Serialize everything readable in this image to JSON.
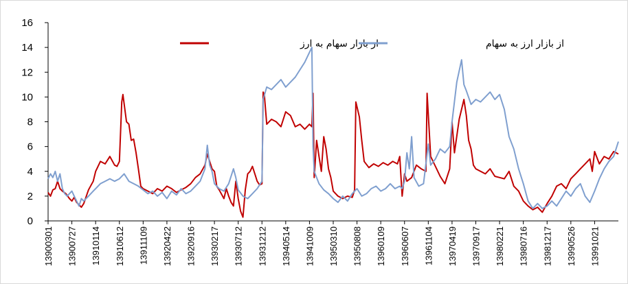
{
  "chart_data": {
    "type": "line",
    "title": "",
    "xlabel": "",
    "ylabel": "",
    "ylim": [
      0,
      16
    ],
    "y_ticks": [
      "0",
      "2",
      "4",
      "6",
      "8",
      "10",
      "12",
      "14",
      "16"
    ],
    "x_tick_labels": [
      "13900301",
      "13900727",
      "13910114",
      "13910612",
      "13911109",
      "13920422",
      "13920916",
      "13930217",
      "13930712",
      "13931212",
      "13940514",
      "13941009",
      "13950310",
      "13950808",
      "13960109",
      "13960607",
      "13961104",
      "13970419",
      "13970917",
      "13980221",
      "13980716",
      "13981217",
      "13990526",
      "13991021"
    ],
    "grid": false,
    "legend_position": "top",
    "series": [
      {
        "name": "از بازار سهام به ارز",
        "color": "#c00000",
        "points": [
          [
            0,
            2.3
          ],
          [
            0.1,
            2.0
          ],
          [
            0.2,
            2.5
          ],
          [
            0.3,
            2.6
          ],
          [
            0.4,
            3.2
          ],
          [
            0.5,
            2.6
          ],
          [
            0.6,
            2.4
          ],
          [
            0.75,
            2.2
          ],
          [
            0.9,
            1.8
          ],
          [
            1.0,
            1.6
          ],
          [
            1.1,
            1.9
          ],
          [
            1.2,
            1.5
          ],
          [
            1.3,
            1.3
          ],
          [
            1.4,
            1.1
          ],
          [
            1.5,
            1.4
          ],
          [
            1.7,
            2.5
          ],
          [
            1.9,
            3.2
          ],
          [
            2.0,
            4.0
          ],
          [
            2.2,
            4.8
          ],
          [
            2.4,
            4.6
          ],
          [
            2.6,
            5.2
          ],
          [
            2.8,
            4.5
          ],
          [
            2.9,
            4.4
          ],
          [
            3.0,
            4.8
          ],
          [
            3.1,
            9.6
          ],
          [
            3.15,
            10.2
          ],
          [
            3.3,
            8.0
          ],
          [
            3.4,
            7.8
          ],
          [
            3.5,
            6.5
          ],
          [
            3.6,
            6.6
          ],
          [
            3.7,
            5.5
          ],
          [
            3.8,
            4.2
          ],
          [
            3.9,
            2.8
          ],
          [
            4.0,
            2.6
          ],
          [
            4.2,
            2.4
          ],
          [
            4.4,
            2.2
          ],
          [
            4.6,
            2.6
          ],
          [
            4.8,
            2.4
          ],
          [
            5.0,
            2.8
          ],
          [
            5.2,
            2.6
          ],
          [
            5.4,
            2.3
          ],
          [
            5.6,
            2.5
          ],
          [
            5.8,
            2.7
          ],
          [
            6.0,
            3.0
          ],
          [
            6.2,
            3.5
          ],
          [
            6.4,
            3.8
          ],
          [
            6.6,
            4.5
          ],
          [
            6.7,
            5.4
          ],
          [
            6.8,
            4.8
          ],
          [
            6.9,
            4.2
          ],
          [
            7.0,
            4.0
          ],
          [
            7.1,
            2.8
          ],
          [
            7.2,
            2.5
          ],
          [
            7.4,
            1.8
          ],
          [
            7.5,
            2.6
          ],
          [
            7.6,
            2.0
          ],
          [
            7.7,
            1.5
          ],
          [
            7.8,
            1.2
          ],
          [
            7.9,
            3.2
          ],
          [
            8.0,
            1.8
          ],
          [
            8.1,
            0.8
          ],
          [
            8.2,
            0.3
          ],
          [
            8.3,
            2.5
          ],
          [
            8.4,
            3.8
          ],
          [
            8.5,
            4.0
          ],
          [
            8.6,
            4.4
          ],
          [
            8.7,
            3.8
          ],
          [
            8.8,
            3.2
          ],
          [
            8.9,
            2.9
          ],
          [
            9.0,
            3.0
          ],
          [
            9.05,
            10.4
          ],
          [
            9.1,
            10.2
          ],
          [
            9.2,
            7.8
          ],
          [
            9.4,
            8.2
          ],
          [
            9.6,
            8.0
          ],
          [
            9.8,
            7.6
          ],
          [
            10.0,
            8.8
          ],
          [
            10.2,
            8.5
          ],
          [
            10.4,
            7.6
          ],
          [
            10.6,
            7.8
          ],
          [
            10.8,
            7.4
          ],
          [
            11.0,
            7.8
          ],
          [
            11.1,
            7.6
          ],
          [
            11.15,
            10.3
          ],
          [
            11.2,
            3.5
          ],
          [
            11.3,
            6.5
          ],
          [
            11.4,
            5.2
          ],
          [
            11.5,
            4.0
          ],
          [
            11.6,
            6.8
          ],
          [
            11.7,
            5.8
          ],
          [
            11.8,
            4.2
          ],
          [
            11.9,
            3.5
          ],
          [
            12.0,
            2.4
          ],
          [
            12.2,
            2.0
          ],
          [
            12.4,
            1.8
          ],
          [
            12.6,
            2.0
          ],
          [
            12.8,
            1.9
          ],
          [
            12.9,
            2.5
          ],
          [
            12.95,
            9.6
          ],
          [
            13.1,
            8.4
          ],
          [
            13.2,
            6.5
          ],
          [
            13.3,
            4.8
          ],
          [
            13.5,
            4.3
          ],
          [
            13.7,
            4.6
          ],
          [
            13.9,
            4.4
          ],
          [
            14.1,
            4.7
          ],
          [
            14.3,
            4.5
          ],
          [
            14.5,
            4.8
          ],
          [
            14.7,
            4.6
          ],
          [
            14.8,
            5.2
          ],
          [
            14.9,
            2.0
          ],
          [
            15.0,
            3.8
          ],
          [
            15.1,
            3.2
          ],
          [
            15.3,
            3.5
          ],
          [
            15.5,
            4.5
          ],
          [
            15.7,
            4.2
          ],
          [
            15.9,
            4.0
          ],
          [
            15.95,
            10.3
          ],
          [
            16.1,
            5.2
          ],
          [
            16.3,
            4.4
          ],
          [
            16.5,
            3.6
          ],
          [
            16.7,
            3.0
          ],
          [
            16.9,
            4.2
          ],
          [
            17.0,
            8.0
          ],
          [
            17.1,
            5.5
          ],
          [
            17.3,
            8.2
          ],
          [
            17.5,
            9.8
          ],
          [
            17.6,
            8.5
          ],
          [
            17.7,
            6.5
          ],
          [
            17.8,
            5.8
          ],
          [
            17.9,
            4.5
          ],
          [
            18.0,
            4.2
          ],
          [
            18.2,
            4.0
          ],
          [
            18.4,
            3.8
          ],
          [
            18.6,
            4.2
          ],
          [
            18.8,
            3.6
          ],
          [
            19.0,
            3.5
          ],
          [
            19.2,
            3.4
          ],
          [
            19.4,
            4.0
          ],
          [
            19.6,
            2.8
          ],
          [
            19.8,
            2.4
          ],
          [
            20.0,
            1.6
          ],
          [
            20.2,
            1.2
          ],
          [
            20.4,
            0.9
          ],
          [
            20.6,
            1.1
          ],
          [
            20.8,
            0.7
          ],
          [
            21.0,
            1.4
          ],
          [
            21.2,
            2.0
          ],
          [
            21.4,
            2.8
          ],
          [
            21.6,
            3.0
          ],
          [
            21.8,
            2.6
          ],
          [
            22.0,
            3.4
          ],
          [
            22.2,
            3.8
          ],
          [
            22.4,
            4.2
          ],
          [
            22.6,
            4.6
          ],
          [
            22.8,
            5.0
          ],
          [
            22.9,
            4.0
          ],
          [
            23.0,
            5.6
          ],
          [
            23.2,
            4.6
          ],
          [
            23.4,
            5.2
          ],
          [
            23.6,
            5.0
          ],
          [
            23.8,
            5.6
          ],
          [
            24.0,
            5.4
          ]
        ]
      },
      {
        "name": "از بازار ارز به سهام",
        "color": "#7f9fcf",
        "points": [
          [
            0,
            3.4
          ],
          [
            0.1,
            3.8
          ],
          [
            0.2,
            3.5
          ],
          [
            0.3,
            4.0
          ],
          [
            0.4,
            3.2
          ],
          [
            0.5,
            3.8
          ],
          [
            0.6,
            2.6
          ],
          [
            0.7,
            2.2
          ],
          [
            0.8,
            2.0
          ],
          [
            1.0,
            2.4
          ],
          [
            1.1,
            2.0
          ],
          [
            1.2,
            1.6
          ],
          [
            1.3,
            1.2
          ],
          [
            1.4,
            1.8
          ],
          [
            1.5,
            1.6
          ],
          [
            1.7,
            2.0
          ],
          [
            1.9,
            2.4
          ],
          [
            2.0,
            2.6
          ],
          [
            2.2,
            3.0
          ],
          [
            2.4,
            3.2
          ],
          [
            2.6,
            3.4
          ],
          [
            2.8,
            3.2
          ],
          [
            3.0,
            3.4
          ],
          [
            3.2,
            3.8
          ],
          [
            3.4,
            3.2
          ],
          [
            3.6,
            3.0
          ],
          [
            3.8,
            2.8
          ],
          [
            4.0,
            2.5
          ],
          [
            4.2,
            2.2
          ],
          [
            4.4,
            2.4
          ],
          [
            4.6,
            2.0
          ],
          [
            4.8,
            2.3
          ],
          [
            5.0,
            1.8
          ],
          [
            5.2,
            2.4
          ],
          [
            5.4,
            2.1
          ],
          [
            5.6,
            2.6
          ],
          [
            5.8,
            2.2
          ],
          [
            6.0,
            2.4
          ],
          [
            6.2,
            2.8
          ],
          [
            6.4,
            3.2
          ],
          [
            6.6,
            4.2
          ],
          [
            6.7,
            6.1
          ],
          [
            6.8,
            4.5
          ],
          [
            6.9,
            4.0
          ],
          [
            7.0,
            3.0
          ],
          [
            7.2,
            2.6
          ],
          [
            7.4,
            2.4
          ],
          [
            7.6,
            3.0
          ],
          [
            7.8,
            4.2
          ],
          [
            7.9,
            3.5
          ],
          [
            8.0,
            2.5
          ],
          [
            8.2,
            2.0
          ],
          [
            8.4,
            1.8
          ],
          [
            8.6,
            2.2
          ],
          [
            8.8,
            2.6
          ],
          [
            9.0,
            3.2
          ],
          [
            9.05,
            9.8
          ],
          [
            9.2,
            10.8
          ],
          [
            9.4,
            10.6
          ],
          [
            9.6,
            11.0
          ],
          [
            9.8,
            11.4
          ],
          [
            10.0,
            10.8
          ],
          [
            10.2,
            11.2
          ],
          [
            10.4,
            11.6
          ],
          [
            10.6,
            12.2
          ],
          [
            10.8,
            12.8
          ],
          [
            11.0,
            13.6
          ],
          [
            11.1,
            14.0
          ],
          [
            11.15,
            6.0
          ],
          [
            11.2,
            4.0
          ],
          [
            11.3,
            3.5
          ],
          [
            11.4,
            3.0
          ],
          [
            11.6,
            2.5
          ],
          [
            11.8,
            2.2
          ],
          [
            12.0,
            1.8
          ],
          [
            12.2,
            1.5
          ],
          [
            12.4,
            2.0
          ],
          [
            12.6,
            1.6
          ],
          [
            12.8,
            2.2
          ],
          [
            13.0,
            2.6
          ],
          [
            13.2,
            2.0
          ],
          [
            13.4,
            2.2
          ],
          [
            13.6,
            2.6
          ],
          [
            13.8,
            2.8
          ],
          [
            14.0,
            2.4
          ],
          [
            14.2,
            2.6
          ],
          [
            14.4,
            3.0
          ],
          [
            14.6,
            2.6
          ],
          [
            14.8,
            2.8
          ],
          [
            14.9,
            2.6
          ],
          [
            15.0,
            3.2
          ],
          [
            15.1,
            5.5
          ],
          [
            15.2,
            4.2
          ],
          [
            15.3,
            6.8
          ],
          [
            15.4,
            3.5
          ],
          [
            15.6,
            2.8
          ],
          [
            15.8,
            3.0
          ],
          [
            16.0,
            6.2
          ],
          [
            16.1,
            4.5
          ],
          [
            16.3,
            5.0
          ],
          [
            16.5,
            5.8
          ],
          [
            16.7,
            5.5
          ],
          [
            16.9,
            6.0
          ],
          [
            17.0,
            8.0
          ],
          [
            17.2,
            11.2
          ],
          [
            17.4,
            13.0
          ],
          [
            17.5,
            11.0
          ],
          [
            17.6,
            10.5
          ],
          [
            17.8,
            9.4
          ],
          [
            18.0,
            9.8
          ],
          [
            18.2,
            9.6
          ],
          [
            18.4,
            10.0
          ],
          [
            18.6,
            10.4
          ],
          [
            18.8,
            9.8
          ],
          [
            19.0,
            10.2
          ],
          [
            19.2,
            9.0
          ],
          [
            19.4,
            6.8
          ],
          [
            19.6,
            5.8
          ],
          [
            19.8,
            4.2
          ],
          [
            20.0,
            3.0
          ],
          [
            20.2,
            1.6
          ],
          [
            20.4,
            1.0
          ],
          [
            20.6,
            1.4
          ],
          [
            20.8,
            1.0
          ],
          [
            21.0,
            1.2
          ],
          [
            21.2,
            1.6
          ],
          [
            21.4,
            1.2
          ],
          [
            21.6,
            1.8
          ],
          [
            21.8,
            2.4
          ],
          [
            22.0,
            2.0
          ],
          [
            22.2,
            2.6
          ],
          [
            22.4,
            3.0
          ],
          [
            22.6,
            2.0
          ],
          [
            22.8,
            1.5
          ],
          [
            23.0,
            2.4
          ],
          [
            23.2,
            3.4
          ],
          [
            23.4,
            4.2
          ],
          [
            23.6,
            4.8
          ],
          [
            23.8,
            5.2
          ],
          [
            24.0,
            6.4
          ]
        ]
      }
    ]
  }
}
